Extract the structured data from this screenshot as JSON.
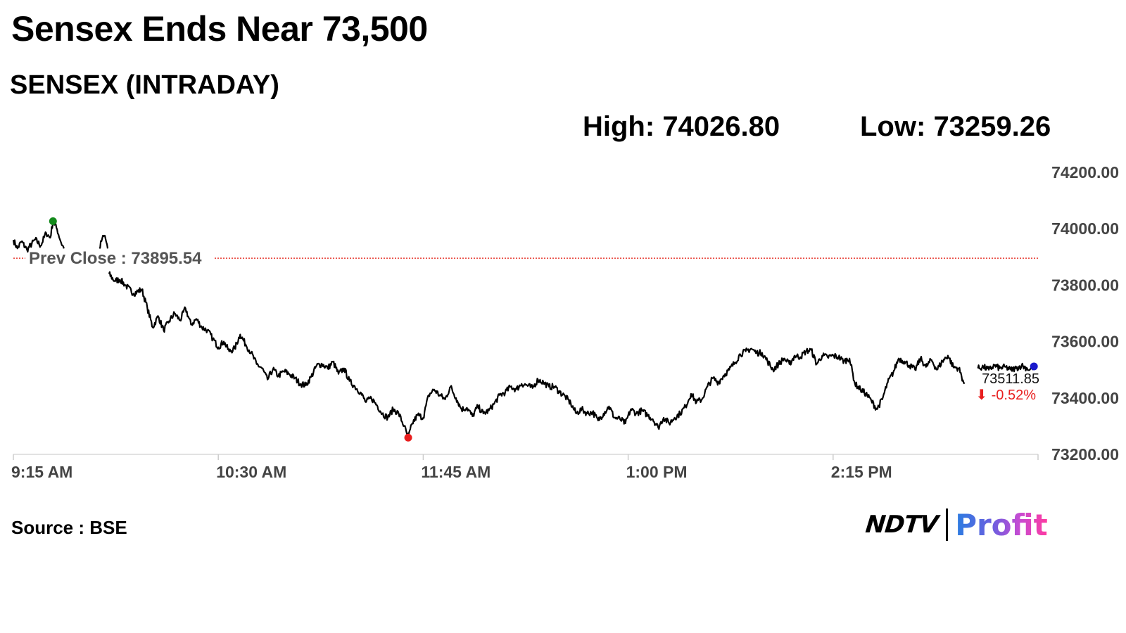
{
  "header": {
    "title": "Sensex Ends Near 73,500",
    "subtitle": "SENSEX (INTRADAY)",
    "high_label": "High:",
    "high_value": "74026.80",
    "low_label": "Low:",
    "low_value": "73259.26"
  },
  "footer": {
    "source": "Source : BSE",
    "logo_ndtv": "NDTV",
    "logo_profit": "Profit"
  },
  "colors": {
    "line": "#000000",
    "prev_close": "#e8372f",
    "high_marker": "#138a1b",
    "low_marker": "#e81e1e",
    "last_marker": "#1a1acc",
    "change_negative": "#e81e1e",
    "axis_text": "#444444"
  },
  "chart_data": {
    "type": "line",
    "title": "SENSEX (INTRADAY)",
    "ylim": [
      73200,
      74200
    ],
    "x_range_minutes": [
      0,
      375
    ],
    "y_ticks": [
      "74200.00",
      "74000.00",
      "73800.00",
      "73600.00",
      "73400.00",
      "73200.00"
    ],
    "y_tick_values": [
      74200,
      74000,
      73800,
      73600,
      73400,
      73200
    ],
    "x_ticks": [
      "9:15 AM",
      "10:30 AM",
      "11:45 AM",
      "1:00 PM",
      "2:15 PM"
    ],
    "x_tick_values": [
      0,
      75,
      150,
      225,
      300
    ],
    "prev_close": {
      "label": "Prev Close : 73895.54",
      "value": 73895.54
    },
    "high": {
      "time_min": 14.5,
      "value": 74026.8
    },
    "low": {
      "time_min": 144.5,
      "value": 73259.26
    },
    "last": {
      "label": "73511.85",
      "value": 73511.85,
      "change": "-0.52%",
      "arrow": "⬇"
    },
    "series": [
      {
        "segments": [
          [
            [
              0,
              73960
            ],
            [
              1.5,
              73930
            ],
            [
              3,
              73955
            ],
            [
              5,
              73925
            ],
            [
              8,
              73962
            ],
            [
              10,
              73940
            ],
            [
              12,
              73985
            ],
            [
              13.5,
              73968
            ],
            [
              14.5,
              74026.8
            ],
            [
              16,
              73998
            ],
            [
              17.5,
              73950
            ],
            [
              18.5,
              73930
            ]
          ],
          [
            [
              31.5,
              73930
            ],
            [
              32.5,
              73965
            ],
            [
              33.5,
              73975
            ],
            [
              34.5,
              73930
            ]
          ],
          [
            [
              35,
              73840
            ],
            [
              37,
              73815
            ],
            [
              39,
              73820
            ],
            [
              41,
              73800
            ],
            [
              44,
              73770
            ],
            [
              47,
              73785
            ],
            [
              49,
              73720
            ],
            [
              51,
              73650
            ],
            [
              53,
              73690
            ],
            [
              55,
              73640
            ],
            [
              57,
              73672
            ],
            [
              59,
              73700
            ],
            [
              61,
              73675
            ],
            [
              63,
              73718
            ],
            [
              65,
              73660
            ],
            [
              67,
              73680
            ],
            [
              69,
              73650
            ],
            [
              71,
              73640
            ],
            [
              73,
              73610
            ],
            [
              75,
              73580
            ],
            [
              77,
              73600
            ],
            [
              79,
              73565
            ],
            [
              81,
              73575
            ],
            [
              83,
              73625
            ],
            [
              85,
              73590
            ],
            [
              87,
              73560
            ],
            [
              89,
              73520
            ],
            [
              91,
              73505
            ],
            [
              93,
              73465
            ],
            [
              95,
              73502
            ],
            [
              97,
              73478
            ],
            [
              99,
              73495
            ],
            [
              101,
              73485
            ],
            [
              103,
              73470
            ],
            [
              105,
              73450
            ],
            [
              107,
              73445
            ],
            [
              109,
              73475
            ],
            [
              111,
              73515
            ],
            [
              113,
              73520
            ],
            [
              115,
              73505
            ],
            [
              117,
              73528
            ],
            [
              119,
              73485
            ],
            [
              121,
              73505
            ],
            [
              123,
              73460
            ],
            [
              125,
              73440
            ],
            [
              127,
              73420
            ],
            [
              129,
              73385
            ],
            [
              131,
              73400
            ],
            [
              133,
              73375
            ],
            [
              135,
              73345
            ],
            [
              137,
              73330
            ],
            [
              139,
              73360
            ],
            [
              141,
              73345
            ],
            [
              143,
              73300
            ],
            [
              144.5,
              73259.26
            ],
            [
              146,
              73310
            ],
            [
              148,
              73340
            ],
            [
              150,
              73330
            ],
            [
              152,
              73410
            ],
            [
              154,
              73430
            ],
            [
              156,
              73410
            ],
            [
              158,
              73395
            ],
            [
              160,
              73440
            ],
            [
              162,
              73400
            ],
            [
              164,
              73360
            ],
            [
              166,
              73365
            ],
            [
              168,
              73335
            ],
            [
              170,
              73370
            ],
            [
              172,
              73345
            ],
            [
              174,
              73355
            ],
            [
              176,
              73380
            ],
            [
              178,
              73410
            ],
            [
              180,
              73420
            ],
            [
              182,
              73440
            ],
            [
              184,
              73430
            ],
            [
              186,
              73450
            ],
            [
              188,
              73445
            ],
            [
              190,
              73435
            ],
            [
              192,
              73465
            ],
            [
              194,
              73455
            ],
            [
              196,
              73440
            ],
            [
              198,
              73440
            ],
            [
              200,
              73420
            ],
            [
              202,
              73405
            ],
            [
              204,
              73380
            ],
            [
              206,
              73345
            ],
            [
              208,
              73360
            ],
            [
              210,
              73345
            ],
            [
              212,
              73350
            ],
            [
              214,
              73320
            ],
            [
              216,
              73345
            ],
            [
              218,
              73370
            ],
            [
              220,
              73330
            ],
            [
              222,
              73325
            ],
            [
              224,
              73310
            ],
            [
              226,
              73360
            ],
            [
              228,
              73345
            ],
            [
              230,
              73355
            ],
            [
              232,
              73340
            ],
            [
              234,
              73325
            ],
            [
              236,
              73295
            ],
            [
              238,
              73330
            ],
            [
              240,
              73310
            ],
            [
              242,
              73330
            ],
            [
              244,
              73345
            ],
            [
              246,
              73370
            ],
            [
              248,
              73415
            ],
            [
              250,
              73385
            ],
            [
              252,
              73395
            ],
            [
              254,
              73440
            ],
            [
              256,
              73470
            ],
            [
              258,
              73455
            ],
            [
              260,
              73480
            ],
            [
              262,
              73500
            ],
            [
              264,
              73525
            ],
            [
              266,
              73555
            ],
            [
              268,
              73565
            ],
            [
              270,
              73575
            ],
            [
              272,
              73560
            ],
            [
              274,
              73560
            ],
            [
              276,
              73530
            ],
            [
              278,
              73500
            ],
            [
              280,
              73520
            ],
            [
              282,
              73540
            ],
            [
              284,
              73520
            ],
            [
              286,
              73550
            ],
            [
              288,
              73545
            ],
            [
              290,
              73565
            ],
            [
              292,
              73570
            ],
            [
              294,
              73520
            ],
            [
              296,
              73550
            ],
            [
              298,
              73545
            ],
            [
              300,
              73550
            ],
            [
              302,
              73545
            ],
            [
              304,
              73530
            ],
            [
              306,
              73540
            ],
            [
              308,
              73450
            ],
            [
              310,
              73430
            ],
            [
              312,
              73415
            ],
            [
              314,
              73390
            ],
            [
              316,
              73360
            ],
            [
              318,
              73395
            ],
            [
              320,
              73455
            ],
            [
              322,
              73490
            ],
            [
              324,
              73540
            ],
            [
              326,
              73530
            ],
            [
              328,
              73515
            ],
            [
              330,
              73500
            ],
            [
              332,
              73540
            ],
            [
              334,
              73510
            ],
            [
              336,
              73535
            ],
            [
              338,
              73500
            ],
            [
              340,
              73530
            ],
            [
              342,
              73550
            ],
            [
              344,
              73510
            ],
            [
              346,
              73505
            ],
            [
              348,
              73450
            ]
          ],
          [
            [
              353,
              73505
            ],
            [
              355,
              73510
            ],
            [
              357,
              73500
            ],
            [
              359,
              73515
            ],
            [
              361,
              73505
            ],
            [
              363,
              73510
            ],
            [
              365,
              73500
            ],
            [
              367,
              73505
            ],
            [
              369,
              73515
            ],
            [
              371,
              73505
            ],
            [
              372,
              73500
            ],
            [
              373.5,
              73511.85
            ]
          ]
        ]
      }
    ]
  }
}
